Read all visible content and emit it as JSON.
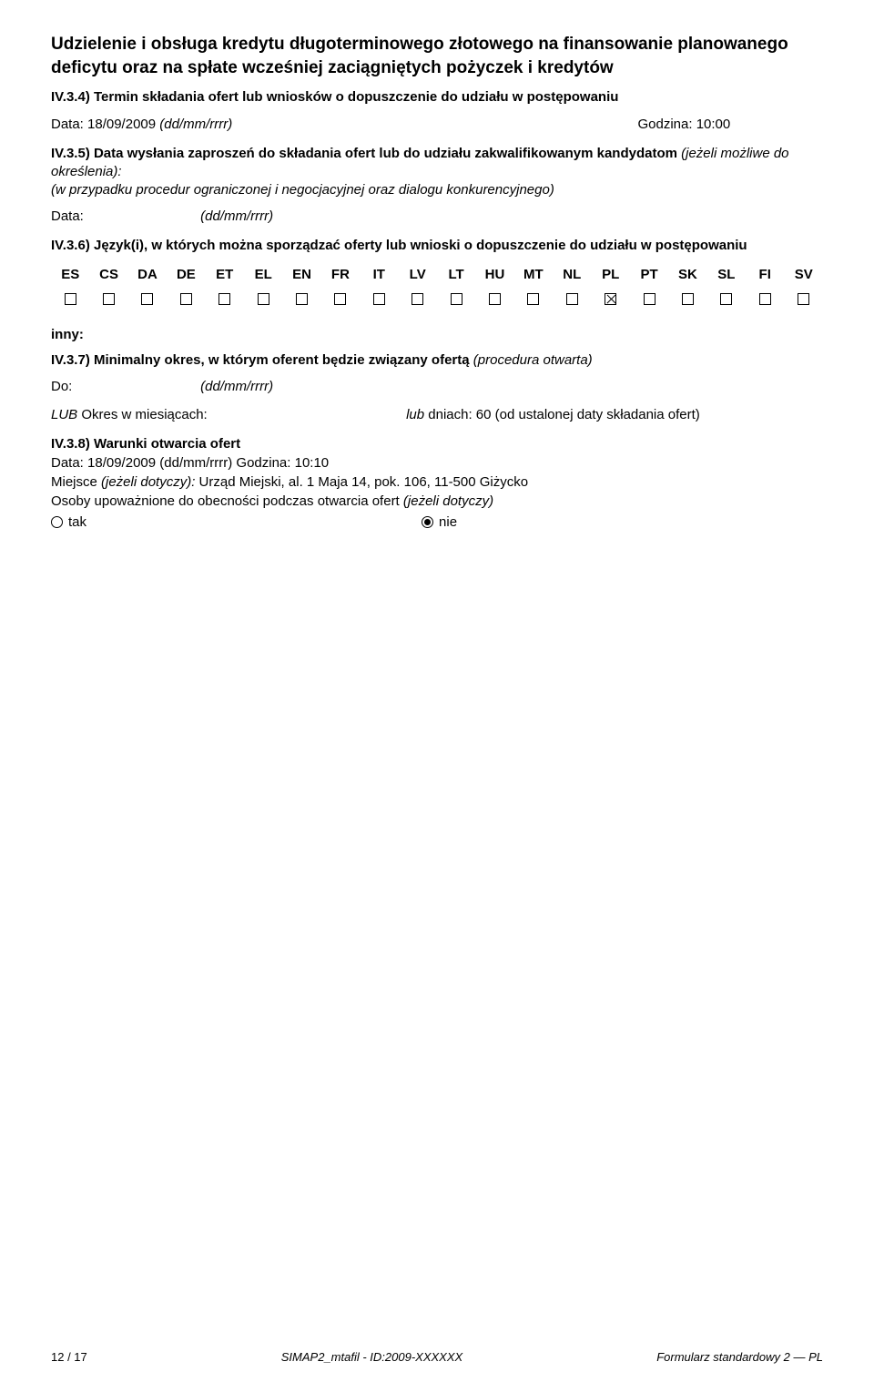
{
  "title": "Udzielenie i obsługa kredytu długoterminowego złotowego na finansowanie planowanego deficytu oraz na spłate wcześniej zaciągniętych pożyczek i kredytów",
  "s434": {
    "head": "IV.3.4) Termin składania ofert lub wniosków o dopuszczenie do udziału w postępowaniu",
    "data_label": "Data: 18/09/2009 ",
    "data_fmt": "(dd/mm/rrrr)",
    "godzina": "Godzina: 10:00"
  },
  "s435": {
    "head": "IV.3.5) Data wysłania zaproszeń do składania ofert lub do udziału zakwalifikowanym kandydatom ",
    "head_italic": "(jeżeli możliwe do określenia):",
    "sub_italic": "(w przypadku procedur ograniczonej i negocjacyjnej oraz dialogu konkurencyjnego)",
    "data_label": "Data:",
    "data_fmt": "(dd/mm/rrrr)"
  },
  "s436": {
    "head": "IV.3.6) Język(i), w których można sporządzać oferty lub wnioski o dopuszczenie do udziału w postępowaniu",
    "langs": [
      "ES",
      "CS",
      "DA",
      "DE",
      "ET",
      "EL",
      "EN",
      "FR",
      "IT",
      "LV",
      "LT",
      "HU",
      "MT",
      "NL",
      "PL",
      "PT",
      "SK",
      "SL",
      "FI",
      "SV"
    ],
    "checked": "PL",
    "inny": "inny:"
  },
  "s437": {
    "head": "IV.3.7) Minimalny okres, w którym oferent będzie związany ofertą ",
    "head_italic": "(procedura otwarta)",
    "do_label": "Do:",
    "do_fmt": "(dd/mm/rrrr)",
    "lub_label": "LUB ",
    "lub_text": "Okres w miesiącach:",
    "lub_right_i": "lub ",
    "lub_right": "dniach: 60 (od ustalonej daty składania ofert)"
  },
  "s438": {
    "head": "IV.3.8) Warunki otwarcia ofert",
    "line1": "Data: 18/09/2009 (dd/mm/rrrr) Godzina: 10:10",
    "line2_a": "Miejsce ",
    "line2_i": "(jeżeli dotyczy):",
    "line2_b": " Urząd Miejski, al. 1 Maja 14, pok. 106, 11-500 Giżycko",
    "line3_a": "Osoby upoważnione do obecności podczas otwarcia ofert ",
    "line3_i": "(jeżeli dotyczy)",
    "opt_tak": "tak",
    "opt_nie": "nie",
    "selected": "nie"
  },
  "footer": {
    "left": "12 / 17",
    "mid": "SIMAP2_mtafil - ID:2009-XXXXXX",
    "right": "Formularz standardowy 2 — PL"
  }
}
